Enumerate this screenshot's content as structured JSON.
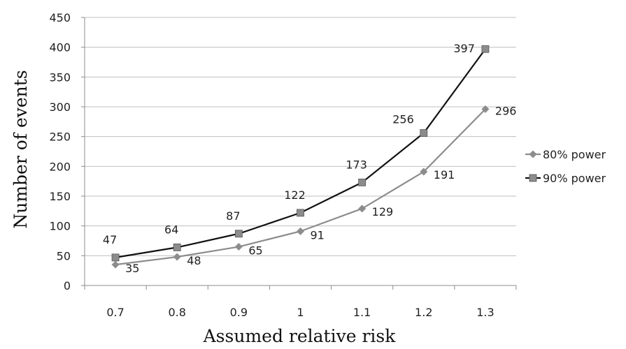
{
  "chart_data": {
    "type": "line",
    "title": "",
    "xlabel": "Assumed relative risk",
    "ylabel": "Number of events",
    "categories": [
      "0.7",
      "0.8",
      "0.9",
      "1",
      "1.1",
      "1.2",
      "1.3"
    ],
    "ylim": [
      0,
      450
    ],
    "yticks": [
      0,
      50,
      100,
      150,
      200,
      250,
      300,
      350,
      400,
      450
    ],
    "grid": true,
    "legend_position": "right",
    "series": [
      {
        "name": "80% power",
        "values": [
          35,
          48,
          65,
          91,
          129,
          191,
          296
        ],
        "color": "#8c8c8c",
        "marker": "diamond"
      },
      {
        "name": "90% power",
        "values": [
          47,
          64,
          87,
          122,
          173,
          256,
          397
        ],
        "color": "#111111",
        "marker": "square"
      }
    ]
  }
}
